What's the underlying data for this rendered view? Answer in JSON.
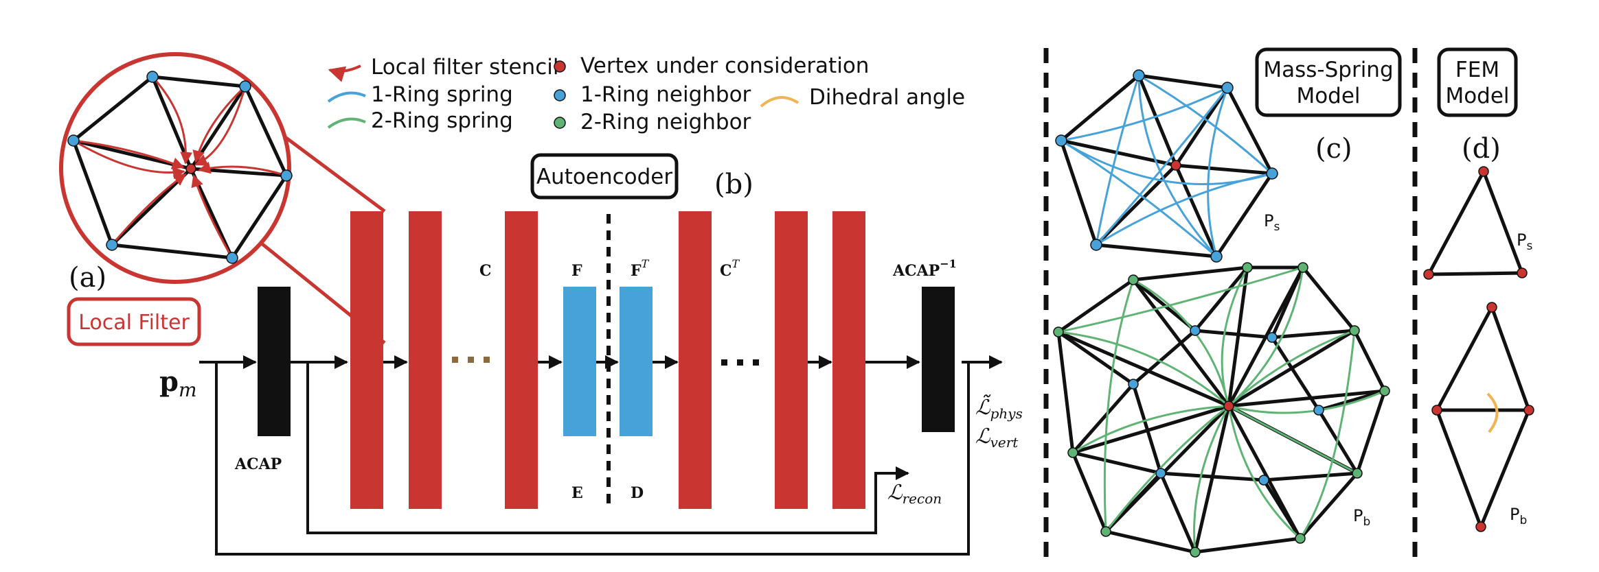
{
  "colors": {
    "red": "#c93531",
    "blue": "#46a2d8",
    "green": "#5fb374",
    "orange": "#f0b455",
    "black": "#111111"
  },
  "legend": {
    "local_filter_stencil": "Local filter stencil",
    "ring1_spring": "1-Ring spring",
    "ring2_spring": "2-Ring spring",
    "vertex_under_consideration": "Vertex under consideration",
    "ring1_neighbor": "1-Ring neighbor",
    "ring2_neighbor": "2-Ring neighbor",
    "dihedral_angle": "Dihedral angle"
  },
  "panel_a": {
    "label": "(a)",
    "local_filter": "Local Filter"
  },
  "panel_b": {
    "label": "(b)",
    "autoencoder": "Autoencoder",
    "input": "p",
    "input_sub": "m",
    "acap": "ACAP",
    "acap_inv": "ACAP",
    "acap_inv_sup": "−1",
    "layer_c": "C",
    "layer_f": "F",
    "layer_ft": "F",
    "layer_ft_sup": "T",
    "layer_ct": "C",
    "layer_ct_sup": "T",
    "encoder": "E",
    "decoder": "D",
    "loss_phys": "ℒ̃",
    "loss_phys_sub": "phys",
    "loss_vert": "ℒ",
    "loss_vert_sub": "vert",
    "loss_recon": "ℒ",
    "loss_recon_sub": "recon"
  },
  "panel_c": {
    "label": "(c)",
    "title_line1": "Mass-Spring",
    "title_line2": "Model",
    "ps": "P",
    "ps_sub": "s",
    "pb": "P",
    "pb_sub": "b"
  },
  "panel_d": {
    "label": "(d)",
    "title_line1": "FEM",
    "title_line2": "Model",
    "ps": "P",
    "ps_sub": "s",
    "pb": "P",
    "pb_sub": "b"
  }
}
